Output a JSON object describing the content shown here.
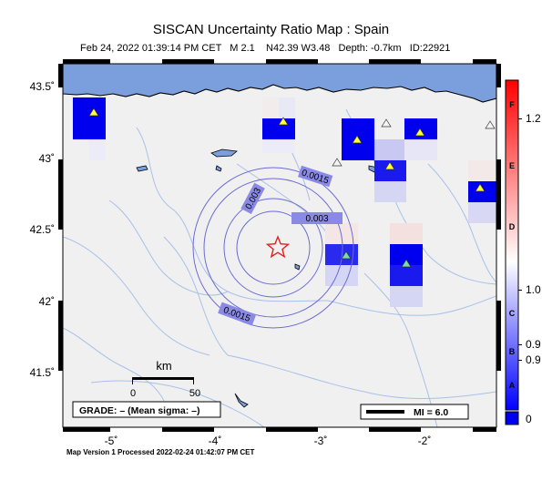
{
  "title": "SISCAN Uncertainty Ratio Map : Spain",
  "subtitle": "Feb 24, 2022 01:39:14 PM CET   M 2.1    N42.39 W3.48   Depth: -0.7km   ID:22921",
  "footer": "Map Version 1 Processed 2022-02-24 01:42:07 PM CET",
  "axes": {
    "lon_ticks": [
      "-5˚",
      "-4˚",
      "-3˚",
      "-2˚"
    ],
    "lat_ticks": [
      "43.5˚",
      "43˚",
      "42.5˚",
      "42˚",
      "41.5˚"
    ]
  },
  "contours": [
    {
      "label": "0.0015"
    },
    {
      "label": "0.003"
    },
    {
      "label": "0.003"
    },
    {
      "label": "0.0015"
    }
  ],
  "scale": {
    "title": "km",
    "start": "0",
    "end": "50"
  },
  "grade_box": "GRADE: – (Mean sigma: –)",
  "mi_legend": "MI = 6.0",
  "colorbar": {
    "letters": [
      "F",
      "E",
      "D",
      "C",
      "B",
      "A"
    ],
    "values": [
      "1.2",
      "1.0",
      "0.9",
      "0.9"
    ],
    "bottom_value": "0",
    "colors": {
      "top": "#ff0000",
      "mid": "#ffffff",
      "bottom": "#0000ff"
    }
  },
  "epicenter": {
    "lat": 42.39,
    "lon": -3.48,
    "symbol": "star-icon"
  },
  "colors": {
    "sea": "#7a9fdc",
    "land": "#f0f0f0",
    "river": "#a8c0e8",
    "contour": "#6b6bd4",
    "station_high": "#0000ee"
  }
}
